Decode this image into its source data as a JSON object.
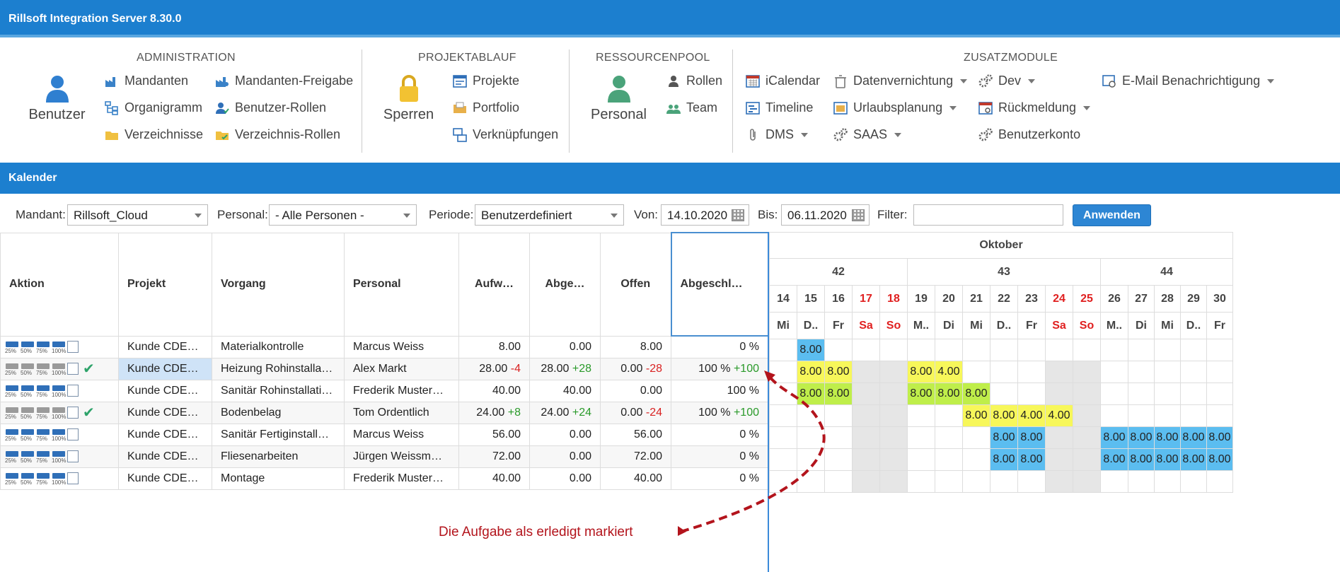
{
  "app": {
    "title": "Rillsoft Integration Server 8.30.0"
  },
  "ribbon": {
    "groups": {
      "administration": "ADMINISTRATION",
      "projektablauf": "PROJEKTABLAUF",
      "ressourcenpool": "RESSOURCENPOOL",
      "zusatzmodule": "ZUSATZMODULE"
    },
    "benutzer": "Benutzer",
    "mandanten": "Mandanten",
    "organigramm": "Organigramm",
    "verzeichnisse": "Verzeichnisse",
    "mandanten_freigabe": "Mandanten-Freigabe",
    "benutzer_rollen": "Benutzer-Rollen",
    "verzeichnis_rollen": "Verzeichnis-Rollen",
    "sperren": "Sperren",
    "projekte": "Projekte",
    "portfolio": "Portfolio",
    "verknuepfungen": "Verknüpfungen",
    "personal": "Personal",
    "rollen": "Rollen",
    "team": "Team",
    "icalendar": "iCalendar",
    "timeline": "Timeline",
    "dms": "DMS",
    "datenvernichtung": "Datenvernichtung",
    "urlaubsplanung": "Urlaubsplanung",
    "saas": "SAAS",
    "dev": "Dev",
    "rueckmeldung": "Rückmeldung",
    "benutzerkonto": "Benutzerkonto",
    "email": "E-Mail Benachrichtigung"
  },
  "section": {
    "title": "Kalender"
  },
  "filters": {
    "mandant_label": "Mandant:",
    "mandant_value": "Rillsoft_Cloud",
    "personal_label": "Personal:",
    "personal_value": "- Alle Personen -",
    "periode_label": "Periode:",
    "periode_value": "Benutzerdefiniert",
    "von_label": "Von:",
    "von_value": "14.10.2020",
    "bis_label": "Bis:",
    "bis_value": "06.11.2020",
    "filter_label": "Filter:",
    "filter_value": "",
    "apply": "Anwenden"
  },
  "grid": {
    "headers": [
      "Aktion",
      "Projekt",
      "Vorgang",
      "Personal",
      "Aufw…",
      "Abge…",
      "Offen",
      "Abgeschl…"
    ],
    "progress_labels": [
      "25%",
      "50%",
      "75%",
      "100%"
    ],
    "rows": [
      {
        "projekt": "Kunde CDE…",
        "vorgang": "Materialkontrolle",
        "personal": "Marcus Weiss",
        "aufw": "8.00",
        "aufw_d": "",
        "abge": "0.00",
        "abge_d": "",
        "offen": "8.00",
        "offen_d": "",
        "abgeschl": "0 %",
        "abgeschl_d": "",
        "done": false,
        "selected": false
      },
      {
        "projekt": "Kunde CDE…",
        "vorgang": "Heizung Rohinstalla…",
        "personal": "Alex Markt",
        "aufw": "28.00",
        "aufw_d": "-4",
        "abge": "28.00",
        "abge_d": "+28",
        "offen": "0.00",
        "offen_d": "-28",
        "abgeschl": "100 %",
        "abgeschl_d": "+100",
        "done": true,
        "selected": true
      },
      {
        "projekt": "Kunde CDE…",
        "vorgang": "Sanitär Rohinstallati…",
        "personal": "Frederik Muster…",
        "aufw": "40.00",
        "aufw_d": "",
        "abge": "40.00",
        "abge_d": "",
        "offen": "0.00",
        "offen_d": "",
        "abgeschl": "100 %",
        "abgeschl_d": "",
        "done": false,
        "selected": false
      },
      {
        "projekt": "Kunde CDE…",
        "vorgang": "Bodenbelag",
        "personal": "Tom Ordentlich",
        "aufw": "24.00",
        "aufw_d": "+8",
        "abge": "24.00",
        "abge_d": "+24",
        "offen": "0.00",
        "offen_d": "-24",
        "abgeschl": "100 %",
        "abgeschl_d": "+100",
        "done": true,
        "selected": false
      },
      {
        "projekt": "Kunde CDE…",
        "vorgang": "Sanitär Fertiginstall…",
        "personal": "Marcus Weiss",
        "aufw": "56.00",
        "aufw_d": "",
        "abge": "0.00",
        "abge_d": "",
        "offen": "56.00",
        "offen_d": "",
        "abgeschl": "0 %",
        "abgeschl_d": "",
        "done": false,
        "selected": false
      },
      {
        "projekt": "Kunde CDE…",
        "vorgang": "Fliesenarbeiten",
        "personal": "Jürgen Weissm…",
        "aufw": "72.00",
        "aufw_d": "",
        "abge": "0.00",
        "abge_d": "",
        "offen": "72.00",
        "offen_d": "",
        "abgeschl": "0 %",
        "abgeschl_d": "",
        "done": false,
        "selected": false
      },
      {
        "projekt": "Kunde CDE…",
        "vorgang": "Montage",
        "personal": "Frederik Muster…",
        "aufw": "40.00",
        "aufw_d": "",
        "abge": "0.00",
        "abge_d": "",
        "offen": "40.00",
        "offen_d": "",
        "abgeschl": "0 %",
        "abgeschl_d": "",
        "done": false,
        "selected": false
      }
    ]
  },
  "calendar": {
    "month": "Oktober",
    "weeks": [
      {
        "label": "42",
        "span": 5
      },
      {
        "label": "43",
        "span": 7
      },
      {
        "label": "44",
        "span": 5
      }
    ],
    "days": [
      {
        "d": "14",
        "w": "Mi",
        "we": false
      },
      {
        "d": "15",
        "w": "D..",
        "we": false
      },
      {
        "d": "16",
        "w": "Fr",
        "we": false
      },
      {
        "d": "17",
        "w": "Sa",
        "we": true
      },
      {
        "d": "18",
        "w": "So",
        "we": true
      },
      {
        "d": "19",
        "w": "M..",
        "we": false
      },
      {
        "d": "20",
        "w": "Di",
        "we": false
      },
      {
        "d": "21",
        "w": "Mi",
        "we": false
      },
      {
        "d": "22",
        "w": "D..",
        "we": false
      },
      {
        "d": "23",
        "w": "Fr",
        "we": false
      },
      {
        "d": "24",
        "w": "Sa",
        "we": true
      },
      {
        "d": "25",
        "w": "So",
        "we": true
      },
      {
        "d": "26",
        "w": "M..",
        "we": false
      },
      {
        "d": "27",
        "w": "Di",
        "we": false
      },
      {
        "d": "28",
        "w": "Mi",
        "we": false
      },
      {
        "d": "29",
        "w": "D..",
        "we": false
      },
      {
        "d": "30",
        "w": "Fr",
        "we": false
      }
    ],
    "cells": [
      [
        [
          1,
          "8.00",
          "blue"
        ]
      ],
      [
        [
          1,
          "8.00",
          "yellow"
        ],
        [
          2,
          "8.00",
          "yellow"
        ],
        [
          5,
          "8.00",
          "yellow"
        ],
        [
          6,
          "4.00",
          "yellow"
        ]
      ],
      [
        [
          1,
          "8.00",
          "green"
        ],
        [
          2,
          "8.00",
          "green"
        ],
        [
          5,
          "8.00",
          "green"
        ],
        [
          6,
          "8.00",
          "green"
        ],
        [
          7,
          "8.00",
          "green"
        ]
      ],
      [
        [
          7,
          "8.00",
          "yellow"
        ],
        [
          8,
          "8.00",
          "yellow"
        ],
        [
          9,
          "4.00",
          "yellow"
        ],
        [
          10,
          "4.00",
          "yellow"
        ]
      ],
      [
        [
          8,
          "8.00",
          "blue"
        ],
        [
          9,
          "8.00",
          "blue"
        ],
        [
          12,
          "8.00",
          "blue"
        ],
        [
          13,
          "8.00",
          "blue"
        ],
        [
          14,
          "8.00",
          "blue"
        ],
        [
          15,
          "8.00",
          "blue"
        ],
        [
          16,
          "8.00",
          "blue"
        ]
      ],
      [
        [
          8,
          "8.00",
          "blue"
        ],
        [
          9,
          "8.00",
          "blue"
        ],
        [
          12,
          "8.00",
          "blue"
        ],
        [
          13,
          "8.00",
          "blue"
        ],
        [
          14,
          "8.00",
          "blue"
        ],
        [
          15,
          "8.00",
          "blue"
        ],
        [
          16,
          "8.00",
          "blue"
        ]
      ],
      []
    ],
    "weekend_shaded_rows": [
      1,
      2,
      3,
      4,
      5,
      6
    ]
  },
  "annotation": {
    "text": "Die Aufgabe als erledigt markiert"
  },
  "colors": {
    "header": "#1c7fcf",
    "accent": "#2d86d4",
    "annotation": "#b3141c",
    "positive": "#2a9a2a",
    "negative": "#d92222"
  }
}
